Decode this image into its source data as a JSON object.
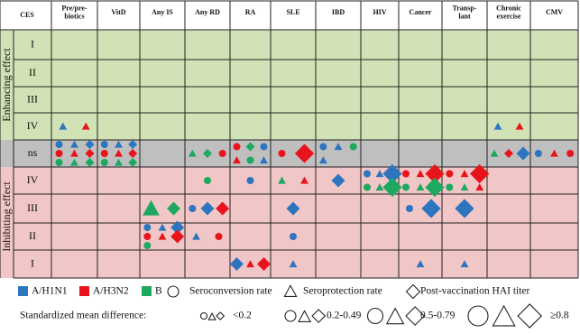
{
  "header": {
    "ces": "CES",
    "columns": [
      [
        "Pre/pre-",
        "biotics"
      ],
      [
        "VitD"
      ],
      [
        "Any IS"
      ],
      [
        "Any RD"
      ],
      [
        "RA"
      ],
      [
        "SLE"
      ],
      [
        "IBD"
      ],
      [
        "HIV"
      ],
      [
        "Cancer"
      ],
      [
        "Transp-",
        "lant"
      ],
      [
        "Chronic",
        "exercise"
      ],
      [
        "CMV"
      ]
    ]
  },
  "side_labels": {
    "enhancing": "Enhancing effect",
    "inhibiting": "Inhibiting effect"
  },
  "rows": [
    "I",
    "II",
    "III",
    "IV",
    "ns",
    "IV",
    "III",
    "II",
    "I"
  ],
  "legend": {
    "strains": [
      "A/H1N1",
      "A/H3N2",
      "B"
    ],
    "measures": [
      "Seroconversion rate",
      "Seroprotection rate",
      "Post-vaccination HAI titer"
    ],
    "smd_title": "Standardized mean difference:",
    "smd_classes": [
      "<0.2",
      "0.2-0.49",
      "0.5-0.79",
      "≥0.8"
    ]
  }
}
